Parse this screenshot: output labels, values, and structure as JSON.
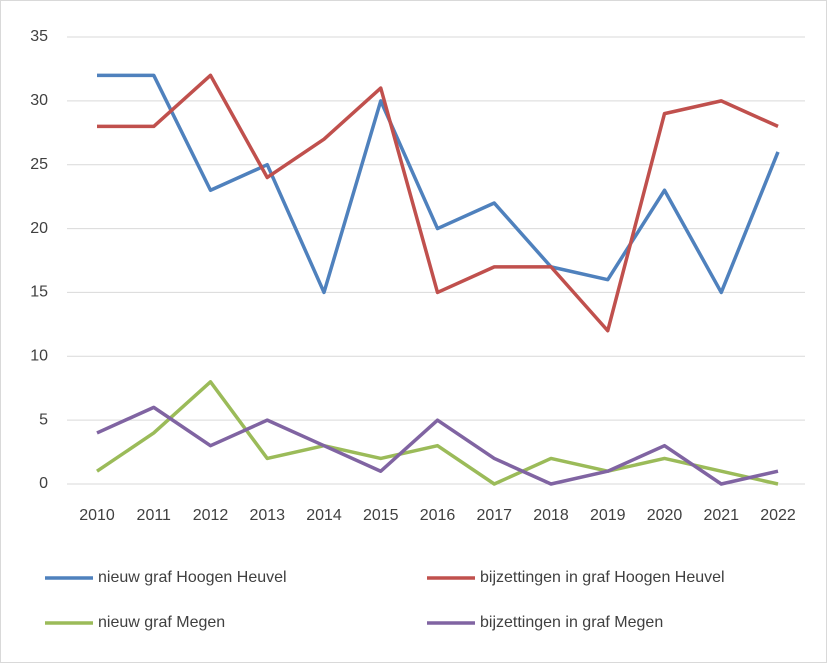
{
  "chart_data": {
    "type": "line",
    "x": [
      "2010",
      "2011",
      "2012",
      "2013",
      "2014",
      "2015",
      "2016",
      "2017",
      "2018",
      "2019",
      "2020",
      "2021",
      "2022"
    ],
    "series": [
      {
        "name": "nieuw graf Hoogen Heuvel",
        "color": "#4f81bd",
        "values": [
          32,
          32,
          23,
          25,
          15,
          30,
          20,
          22,
          17,
          16,
          23,
          15,
          26
        ]
      },
      {
        "name": "bijzettingen in graf Hoogen Heuvel",
        "color": "#c0504d",
        "values": [
          28,
          28,
          32,
          24,
          27,
          31,
          15,
          17,
          17,
          12,
          29,
          30,
          28
        ]
      },
      {
        "name": "nieuw graf Megen",
        "color": "#9bbb59",
        "values": [
          1,
          4,
          8,
          2,
          3,
          2,
          3,
          0,
          2,
          1,
          2,
          1,
          0
        ]
      },
      {
        "name": "bijzettingen in graf Megen",
        "color": "#8064a2",
        "values": [
          4,
          6,
          3,
          5,
          3,
          1,
          5,
          2,
          0,
          1,
          3,
          0,
          1
        ]
      }
    ],
    "ylim": [
      0,
      35
    ],
    "yticks": [
      0,
      5,
      10,
      15,
      20,
      25,
      30,
      35
    ],
    "grid": true,
    "legend": "bottom"
  }
}
